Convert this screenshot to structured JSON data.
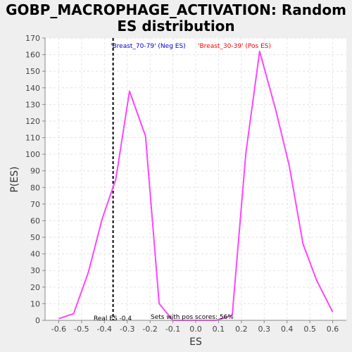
{
  "chart_data": {
    "type": "line",
    "title": "GOBP_MACROPHAGE_ACTIVATION: Random ES distribution",
    "title_lines": [
      "GOBP_MACROPHAGE_ACTIVATION: Random",
      "ES distribution"
    ],
    "xlabel": "ES",
    "ylabel": "P(ES)",
    "xlim": [
      -0.66,
      0.66
    ],
    "ylim": [
      0,
      170
    ],
    "xticks": [
      -0.6,
      -0.5,
      -0.4,
      -0.3,
      -0.2,
      -0.1,
      0.0,
      0.1,
      0.2,
      0.3,
      0.4,
      0.5,
      0.6
    ],
    "xtick_labels": [
      "-0.6",
      "-0.5",
      "-0.4",
      "-0.3",
      "-0.2",
      "-0.1",
      "0.0",
      "0.1",
      "0.2",
      "0.3",
      "0.4",
      "0.5",
      "0.6"
    ],
    "yticks": [
      0,
      10,
      20,
      30,
      40,
      50,
      60,
      70,
      80,
      90,
      100,
      110,
      120,
      130,
      140,
      150,
      160,
      170
    ],
    "grid": true,
    "series": [
      {
        "color": "#ff44ff",
        "x": [
          -0.6,
          -0.535,
          -0.47,
          -0.41,
          -0.35,
          -0.29,
          -0.22,
          -0.16,
          -0.1,
          -0.04,
          0.02,
          0.09,
          0.16,
          0.22,
          0.28,
          0.35,
          0.41,
          0.47,
          0.53,
          0.6
        ],
        "y": [
          1,
          4,
          29,
          61,
          85,
          138,
          111,
          10,
          0,
          0,
          0,
          0,
          3,
          101,
          162,
          127,
          93,
          46,
          24,
          5
        ]
      }
    ],
    "reference_line": {
      "x": -0.362,
      "style": "dashed",
      "color": "#000000"
    },
    "annotations": {
      "neg_label": "'Breast_70-79' (Neg ES)",
      "neg_color": "#0000cc",
      "pos_label": "'Breast_30-39' (Pos ES)",
      "pos_color": "#ff0000",
      "real_es": "Real ES -0.4",
      "pos_scores": "Sets with pos scores: 56%"
    }
  }
}
